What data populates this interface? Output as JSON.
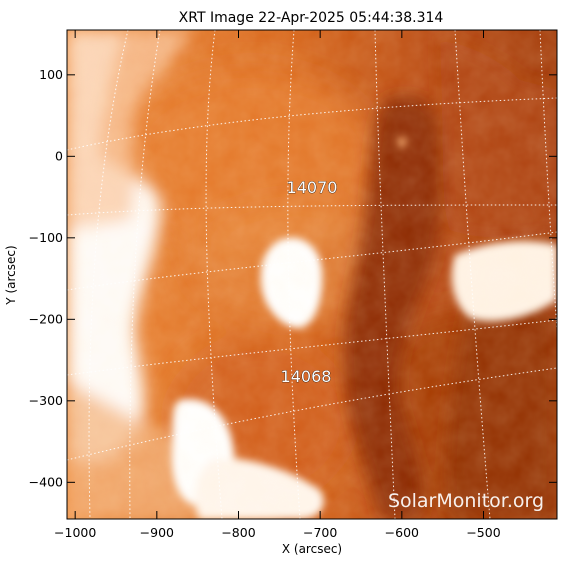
{
  "title": "XRT Image 22-Apr-2025 05:44:38.314",
  "x_axis": {
    "label": "X (arcsec)",
    "range": [
      -1010,
      -410
    ],
    "ticks": [
      -1000,
      -900,
      -800,
      -700,
      -600,
      -500
    ],
    "tick_labels": [
      "−1000",
      "−900",
      "−800",
      "−700",
      "−600",
      "−500"
    ]
  },
  "y_axis": {
    "label": "Y (arcsec)",
    "range": [
      -445,
      155
    ],
    "ticks": [
      100,
      0,
      -100,
      -200,
      -300,
      -400
    ],
    "tick_labels": [
      "100",
      "0",
      "−100",
      "−200",
      "−300",
      "−400"
    ]
  },
  "regions": [
    {
      "label": "14070",
      "x": -710,
      "y": -37
    },
    {
      "label": "14068",
      "x": -715,
      "y": -270
    }
  ],
  "watermark": "SolarMonitor.org",
  "colors": {
    "colormap_dark": "#7a1e00",
    "colormap_mid": "#d9661a",
    "colormap_bright": "#ffffff",
    "grid": "#ffffff"
  }
}
